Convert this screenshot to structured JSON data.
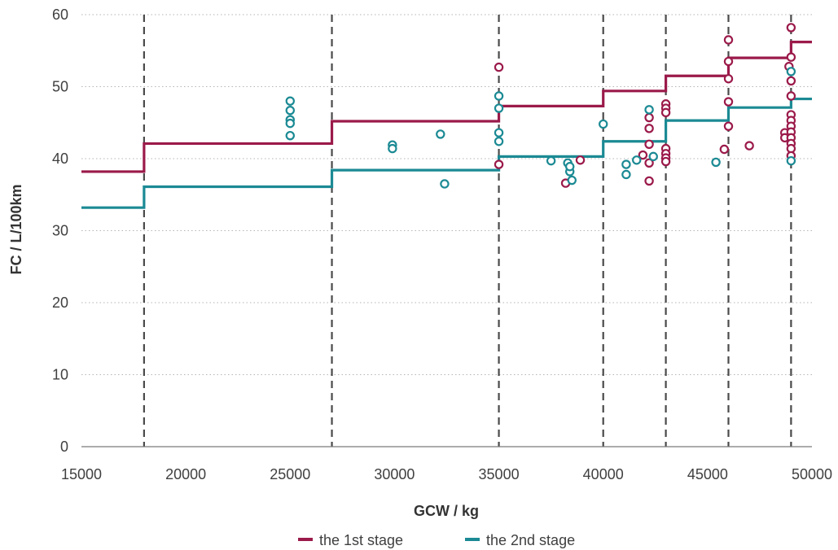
{
  "chart_data": {
    "type": "scatter",
    "title": "",
    "xlabel": "GCW / kg",
    "ylabel": "FC / L/100km",
    "xlim": [
      15000,
      50000
    ],
    "ylim": [
      0,
      60
    ],
    "x_ticks": [
      15000,
      20000,
      25000,
      30000,
      35000,
      40000,
      45000,
      50000
    ],
    "y_ticks": [
      0,
      10,
      20,
      30,
      40,
      50,
      60
    ],
    "x_tick_labels": [
      "15000",
      "20000",
      "25000",
      "30000",
      "35000",
      "40000",
      "45000",
      "50000"
    ],
    "y_tick_labels": [
      "0",
      "10",
      "20",
      "30",
      "40",
      "50",
      "60"
    ],
    "grid": "horizontal dotted",
    "class_boundaries_gcw": [
      18000,
      27000,
      35000,
      40000,
      43000,
      46000,
      49000
    ],
    "legend_position": "bottom-center",
    "series": [
      {
        "name": "the 1st stage",
        "color": "#9b1a4a",
        "limit_steps": [
          {
            "x0": 15000,
            "x1": 18000,
            "y": 38.2
          },
          {
            "x0": 18000,
            "x1": 27000,
            "y": 42.1
          },
          {
            "x0": 27000,
            "x1": 35000,
            "y": 45.2
          },
          {
            "x0": 35000,
            "x1": 40000,
            "y": 47.3
          },
          {
            "x0": 40000,
            "x1": 43000,
            "y": 49.4
          },
          {
            "x0": 43000,
            "x1": 46000,
            "y": 51.5
          },
          {
            "x0": 46000,
            "x1": 49000,
            "y": 54.0
          },
          {
            "x0": 49000,
            "x1": 50000,
            "y": 56.2
          }
        ],
        "points": [
          [
            35000,
            52.7
          ],
          [
            35000,
            39.2
          ],
          [
            38200,
            36.6
          ],
          [
            38900,
            39.8
          ],
          [
            41900,
            40.5
          ],
          [
            42200,
            45.7
          ],
          [
            42200,
            44.2
          ],
          [
            42200,
            42.0
          ],
          [
            42200,
            39.4
          ],
          [
            42200,
            36.9
          ],
          [
            43000,
            47.6
          ],
          [
            43000,
            47.0
          ],
          [
            43000,
            46.4
          ],
          [
            43000,
            41.4
          ],
          [
            43000,
            40.7
          ],
          [
            43000,
            40.1
          ],
          [
            43000,
            39.6
          ],
          [
            45800,
            41.3
          ],
          [
            46000,
            56.5
          ],
          [
            46000,
            53.5
          ],
          [
            46000,
            51.1
          ],
          [
            46000,
            47.9
          ],
          [
            46000,
            44.5
          ],
          [
            47000,
            41.8
          ],
          [
            48700,
            43.6
          ],
          [
            48700,
            42.9
          ],
          [
            48900,
            52.8
          ],
          [
            49000,
            58.2
          ],
          [
            49000,
            54.1
          ],
          [
            49000,
            50.8
          ],
          [
            49000,
            48.7
          ],
          [
            49000,
            46.1
          ],
          [
            49000,
            45.3
          ],
          [
            49000,
            44.5
          ],
          [
            49000,
            43.7
          ],
          [
            49000,
            42.9
          ],
          [
            49000,
            42.1
          ],
          [
            49000,
            41.4
          ],
          [
            49000,
            40.4
          ]
        ]
      },
      {
        "name": "the 2nd stage",
        "color": "#1b8a94",
        "limit_steps": [
          {
            "x0": 15000,
            "x1": 18000,
            "y": 33.2
          },
          {
            "x0": 18000,
            "x1": 27000,
            "y": 36.1
          },
          {
            "x0": 27000,
            "x1": 35000,
            "y": 38.4
          },
          {
            "x0": 35000,
            "x1": 40000,
            "y": 40.3
          },
          {
            "x0": 40000,
            "x1": 43000,
            "y": 42.4
          },
          {
            "x0": 43000,
            "x1": 46000,
            "y": 45.3
          },
          {
            "x0": 46000,
            "x1": 49000,
            "y": 47.1
          },
          {
            "x0": 49000,
            "x1": 50000,
            "y": 48.3
          }
        ],
        "points": [
          [
            25000,
            48.0
          ],
          [
            25000,
            46.7
          ],
          [
            25000,
            45.4
          ],
          [
            25000,
            44.9
          ],
          [
            25000,
            43.2
          ],
          [
            29900,
            41.9
          ],
          [
            29900,
            41.4
          ],
          [
            32200,
            43.4
          ],
          [
            32400,
            36.5
          ],
          [
            35000,
            48.7
          ],
          [
            35000,
            47.0
          ],
          [
            35000,
            43.6
          ],
          [
            35000,
            42.4
          ],
          [
            37500,
            39.7
          ],
          [
            38300,
            39.4
          ],
          [
            38400,
            38.2
          ],
          [
            38400,
            38.9
          ],
          [
            38500,
            37.0
          ],
          [
            40000,
            44.8
          ],
          [
            41100,
            39.2
          ],
          [
            41100,
            37.8
          ],
          [
            41600,
            39.8
          ],
          [
            42200,
            46.8
          ],
          [
            42400,
            40.3
          ],
          [
            45400,
            39.5
          ],
          [
            49000,
            52.1
          ],
          [
            49000,
            39.7
          ]
        ]
      }
    ]
  }
}
